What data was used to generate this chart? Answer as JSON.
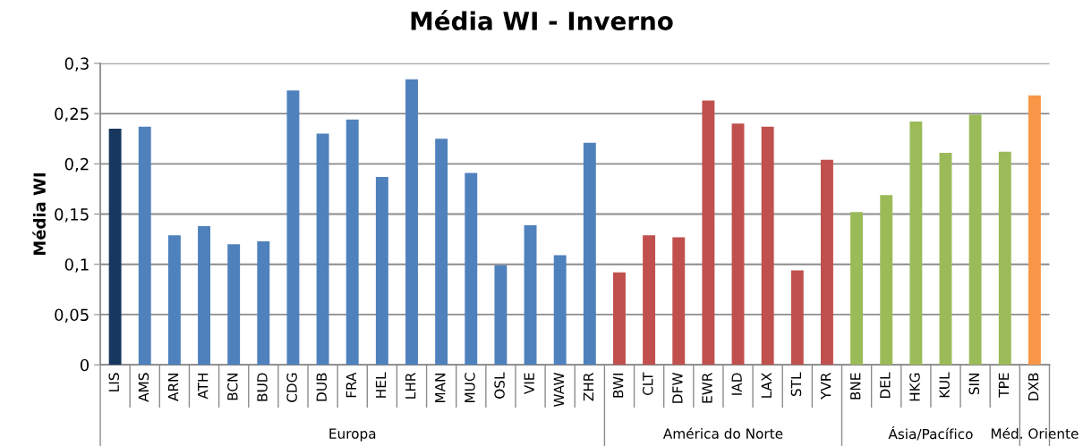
{
  "chart_data": {
    "type": "bar",
    "title": "Média WI - Inverno",
    "ylabel": "Média WI",
    "categories": [
      "LIS",
      "AMS",
      "ARN",
      "ATH",
      "BCN",
      "BUD",
      "CDG",
      "DUB",
      "FRA",
      "HEL",
      "LHR",
      "MAN",
      "MUC",
      "OSL",
      "VIE",
      "WAW",
      "ZHR",
      "BWI",
      "CLT",
      "DFW",
      "EWR",
      "IAD",
      "LAX",
      "STL",
      "YVR",
      "BNE",
      "DEL",
      "HKG",
      "KUL",
      "SIN",
      "TPE",
      "DXB"
    ],
    "series": [
      {
        "colors": [
          "#17375e",
          "#4f81bd",
          "#4f81bd",
          "#4f81bd",
          "#4f81bd",
          "#4f81bd",
          "#4f81bd",
          "#4f81bd",
          "#4f81bd",
          "#4f81bd",
          "#4f81bd",
          "#4f81bd",
          "#4f81bd",
          "#4f81bd",
          "#4f81bd",
          "#4f81bd",
          "#4f81bd",
          null,
          null,
          null,
          null,
          null,
          null,
          null,
          null,
          null,
          null,
          null,
          null,
          null,
          null,
          null
        ],
        "values": [
          0.235,
          0.237,
          0.129,
          0.138,
          0.12,
          0.123,
          0.273,
          0.23,
          0.244,
          0.187,
          0.284,
          0.225,
          0.191,
          0.099,
          0.139,
          0.109,
          0.221,
          null,
          null,
          null,
          null,
          null,
          null,
          null,
          null,
          null,
          null,
          null,
          null,
          null,
          null,
          null
        ]
      },
      {
        "color": "#c0504d",
        "values": [
          null,
          null,
          null,
          null,
          null,
          null,
          null,
          null,
          null,
          null,
          null,
          null,
          null,
          null,
          null,
          null,
          null,
          0.092,
          0.129,
          0.127,
          0.263,
          0.24,
          0.237,
          0.094,
          0.204,
          null,
          null,
          null,
          null,
          null,
          null,
          null
        ]
      },
      {
        "color": "#9bbb59",
        "values": [
          null,
          null,
          null,
          null,
          null,
          null,
          null,
          null,
          null,
          null,
          null,
          null,
          null,
          null,
          null,
          null,
          null,
          null,
          null,
          null,
          null,
          null,
          null,
          null,
          null,
          0.152,
          0.169,
          0.242,
          0.211,
          0.249,
          0.212,
          null
        ]
      },
      {
        "color": "#f79646",
        "values": [
          null,
          null,
          null,
          null,
          null,
          null,
          null,
          null,
          null,
          null,
          null,
          null,
          null,
          null,
          null,
          null,
          null,
          null,
          null,
          null,
          null,
          null,
          null,
          null,
          null,
          null,
          null,
          null,
          null,
          null,
          null,
          0.268
        ]
      }
    ],
    "ylim": [
      0,
      0.3
    ],
    "yticks": [
      {
        "value": 0,
        "label": "0"
      },
      {
        "value": 0.05,
        "label": "0,05"
      },
      {
        "value": 0.1,
        "label": "0,1"
      },
      {
        "value": 0.15,
        "label": "0,15"
      },
      {
        "value": 0.2,
        "label": "0,2"
      },
      {
        "value": 0.25,
        "label": "0,25"
      },
      {
        "value": 0.3,
        "label": "0,3"
      }
    ],
    "annotations": [
      "Europa",
      "América do Norte",
      "Ásia/Pacífico",
      "Méd. Oriente"
    ],
    "grid": "y",
    "legend": false
  }
}
